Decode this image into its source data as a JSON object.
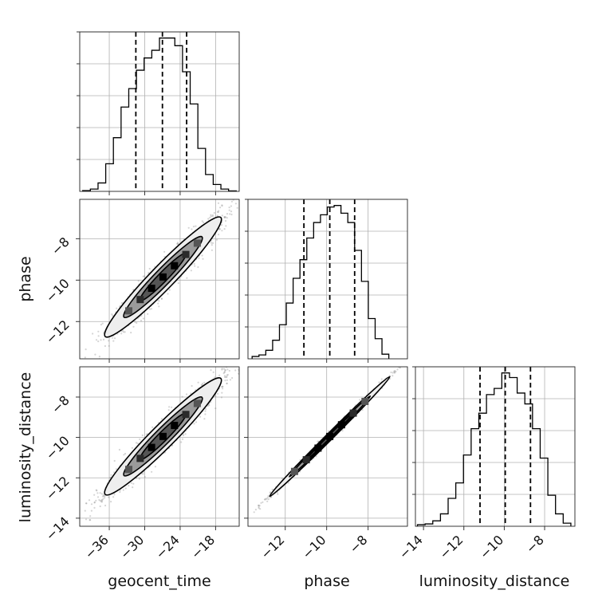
{
  "chart_data": {
    "type": "corner",
    "parameters": [
      "geocent_time",
      "phase",
      "luminosity_distance"
    ],
    "grid": true,
    "ranges": {
      "geocent_time": [
        -41,
        -14
      ],
      "phase": [
        -13.8,
        -6.1
      ],
      "luminosity_distance": [
        -14.4,
        -6.5
      ]
    },
    "ticks": {
      "geocent_time": [
        -36,
        -30,
        -24,
        -18
      ],
      "phase": [
        -12,
        -10,
        -8
      ],
      "luminosity_distance": [
        -14,
        -12,
        -10,
        -8
      ]
    },
    "tick_labels": {
      "geocent_time": [
        "−36",
        "−30",
        "−24",
        "−18"
      ],
      "phase": [
        "−12",
        "−10",
        "−8"
      ],
      "luminosity_distance": [
        "−14",
        "−12",
        "−10",
        "−8"
      ]
    },
    "quantiles": {
      "geocent_time": [
        -31.5,
        -27.0,
        -22.9
      ],
      "phase": [
        -11.1,
        -9.85,
        -8.65
      ],
      "luminosity_distance": [
        -11.2,
        -9.95,
        -8.7
      ]
    },
    "histograms": {
      "geocent_time": {
        "edges": [
          -40.5,
          -39.2,
          -37.9,
          -36.6,
          -35.3,
          -34.0,
          -32.7,
          -31.4,
          -30.1,
          -28.8,
          -27.5,
          -26.2,
          -24.9,
          -23.6,
          -22.3,
          -21.0,
          -19.7,
          -18.4,
          -17.1,
          -15.8,
          -14.5
        ],
        "counts": [
          0.5,
          1.5,
          5.5,
          18,
          35,
          55,
          67,
          79,
          87,
          92,
          100,
          100,
          95,
          78,
          57,
          28,
          11,
          4.5,
          1.5,
          0.3
        ]
      },
      "phase": {
        "edges": [
          -13.6,
          -13.27,
          -12.94,
          -12.61,
          -12.28,
          -11.95,
          -11.62,
          -11.29,
          -10.96,
          -10.63,
          -10.3,
          -9.97,
          -9.64,
          -9.31,
          -8.98,
          -8.65,
          -8.32,
          -7.99,
          -7.66,
          -7.33,
          -7.0
        ],
        "counts": [
          1.5,
          2.5,
          5.5,
          12,
          22,
          36,
          52,
          64,
          78,
          88,
          93,
          98,
          99,
          94,
          88,
          70,
          50,
          26,
          13,
          3
        ]
      },
      "luminosity_distance": {
        "edges": [
          -14.3,
          -13.92,
          -13.54,
          -13.16,
          -12.78,
          -12.4,
          -12.02,
          -11.64,
          -11.26,
          -10.88,
          -10.5,
          -10.12,
          -9.74,
          -9.36,
          -8.98,
          -8.6,
          -8.22,
          -7.84,
          -7.46,
          -7.08,
          -6.7
        ],
        "counts": [
          1,
          1.5,
          3.5,
          8,
          18,
          28,
          46,
          63,
          73,
          85,
          89,
          99,
          96,
          86,
          79,
          63,
          44,
          20,
          8,
          2
        ]
      }
    },
    "scatter": {
      "phase_vs_geocent_time": {
        "x_param": "geocent_time",
        "y_param": "phase",
        "center": [
          -26.9,
          -9.85
        ],
        "sd": [
          4.6,
          1.35
        ],
        "correlation": 0.96,
        "n_points": 1800,
        "seed": 7
      },
      "luminosity_distance_vs_geocent_time": {
        "x_param": "geocent_time",
        "y_param": "luminosity_distance",
        "center": [
          -26.9,
          -9.95
        ],
        "sd": [
          4.6,
          1.35
        ],
        "correlation": 0.96,
        "n_points": 1800,
        "seed": 11
      },
      "luminosity_distance_vs_phase": {
        "x_param": "phase",
        "y_param": "luminosity_distance",
        "center": [
          -9.85,
          -9.95
        ],
        "sd": [
          1.35,
          1.38
        ],
        "correlation": 0.997,
        "n_points": 1100,
        "seed": 23
      }
    }
  }
}
